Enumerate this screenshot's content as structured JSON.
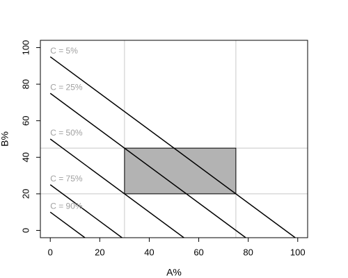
{
  "chart_data": {
    "type": "line",
    "xlabel": "A%",
    "ylabel": "B%",
    "xlim": [
      -4,
      104
    ],
    "ylim": [
      -4,
      104
    ],
    "xticks": [
      0,
      20,
      40,
      60,
      80,
      100
    ],
    "yticks": [
      0,
      20,
      40,
      60,
      80,
      100
    ],
    "vlines": [
      30,
      75
    ],
    "hlines": [
      20,
      45
    ],
    "refline_color": "#c8c8c8",
    "rect": {
      "x": [
        30,
        75
      ],
      "y": [
        20,
        45
      ],
      "color": "#b3b3b3"
    },
    "label_color": "#a0a0a0",
    "series": [
      {
        "name": "C = 5%",
        "color": "#000000",
        "x": [
          0,
          99
        ],
        "values": [
          95,
          -4
        ]
      },
      {
        "name": "C = 25%",
        "color": "#000000",
        "x": [
          0,
          79
        ],
        "values": [
          75,
          -4
        ]
      },
      {
        "name": "C = 50%",
        "color": "#000000",
        "x": [
          0,
          54
        ],
        "values": [
          50,
          -4
        ]
      },
      {
        "name": "C = 75%",
        "color": "#000000",
        "x": [
          0,
          29
        ],
        "values": [
          25,
          -4
        ]
      },
      {
        "name": "C = 90%",
        "color": "#000000",
        "x": [
          0,
          14
        ],
        "values": [
          10,
          -4
        ]
      }
    ]
  }
}
